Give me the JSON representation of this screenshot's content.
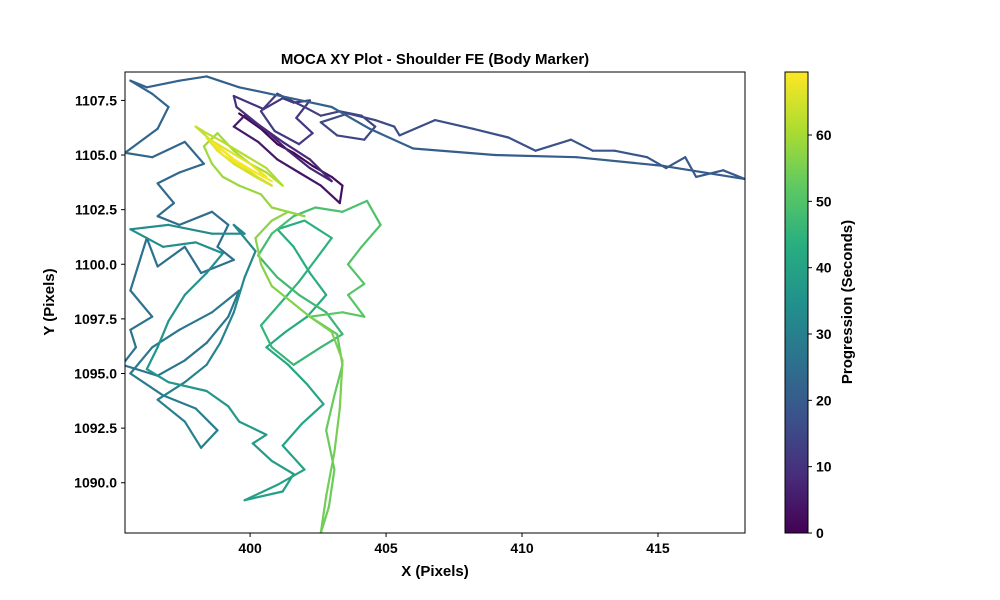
{
  "chart_data": {
    "type": "line",
    "title": "MOCA XY Plot - Shoulder FE (Body Marker)",
    "xlabel": "X (Pixels)",
    "ylabel": "Y (Pixels)",
    "colorbar_label": "Progression (Seconds)",
    "xlim": [
      395.4,
      418.2
    ],
    "ylim": [
      1087.7,
      1108.8
    ],
    "xticks": [
      400,
      405,
      410,
      415
    ],
    "yticks": [
      1090.0,
      1092.5,
      1095.0,
      1097.5,
      1100.0,
      1102.5,
      1105.0,
      1107.5
    ],
    "xtick_labels": [
      "400",
      "405",
      "410",
      "415"
    ],
    "ytick_labels": [
      "1090.0",
      "1092.5",
      "1095.0",
      "1097.5",
      "1100.0",
      "1102.5",
      "1105.0",
      "1107.5"
    ],
    "colorbar_range": [
      0,
      69.5
    ],
    "colorbar_ticks": [
      0,
      10,
      20,
      30,
      40,
      50,
      60
    ],
    "colorbar_tick_labels": [
      "0",
      "10",
      "20",
      "30",
      "40",
      "50",
      "60"
    ],
    "colormap": "viridis",
    "series": [
      {
        "values": [
          [
            399.6,
            1106.9
          ],
          [
            400.4,
            1106.2
          ],
          [
            401.0,
            1105.5
          ],
          [
            401.6,
            1105.1
          ],
          [
            402.3,
            1104.5
          ],
          [
            403.0,
            1104.0
          ],
          [
            403.4,
            1103.6
          ],
          [
            403.3,
            1102.8
          ],
          [
            402.6,
            1103.6
          ],
          [
            401.8,
            1104.2
          ],
          [
            401.0,
            1104.8
          ],
          [
            400.3,
            1105.6
          ],
          [
            399.4,
            1106.3
          ],
          [
            399.8,
            1106.8
          ],
          [
            400.7,
            1106.0
          ],
          [
            401.4,
            1105.2
          ],
          [
            402.2,
            1104.4
          ],
          [
            403.0,
            1103.8
          ],
          [
            402.2,
            1104.8
          ],
          [
            401.2,
            1105.6
          ],
          [
            400.3,
            1106.4
          ],
          [
            399.5,
            1107.2
          ],
          [
            399.4,
            1107.7
          ],
          [
            400.5,
            1107.1
          ]
        ],
        "t0": 0,
        "t1": 10
      },
      {
        "values": [
          [
            400.5,
            1107.1
          ],
          [
            401.2,
            1107.6
          ],
          [
            401.6,
            1107.4
          ],
          [
            402.2,
            1107.5
          ],
          [
            401.7,
            1106.7
          ],
          [
            402.3,
            1106.0
          ],
          [
            401.8,
            1105.5
          ],
          [
            400.9,
            1106.1
          ],
          [
            400.4,
            1107.0
          ],
          [
            401.0,
            1107.8
          ],
          [
            402.0,
            1107.2
          ],
          [
            402.6,
            1106.8
          ],
          [
            403.3,
            1107.0
          ],
          [
            404.1,
            1106.8
          ],
          [
            404.6,
            1106.3
          ],
          [
            404.2,
            1105.7
          ],
          [
            403.2,
            1105.9
          ],
          [
            402.6,
            1106.5
          ],
          [
            403.6,
            1106.9
          ],
          [
            404.6,
            1106.6
          ],
          [
            405.3,
            1106.3
          ],
          [
            405.5,
            1105.9
          ],
          [
            406.8,
            1106.6
          ],
          [
            408.2,
            1106.2
          ],
          [
            409.5,
            1105.8
          ],
          [
            410.5,
            1105.2
          ],
          [
            411.8,
            1105.7
          ],
          [
            412.6,
            1105.2
          ],
          [
            413.4,
            1105.2
          ],
          [
            414.6,
            1104.9
          ],
          [
            415.3,
            1104.4
          ],
          [
            416.0,
            1104.9
          ],
          [
            416.4,
            1104.0
          ],
          [
            417.4,
            1104.3
          ],
          [
            418.2,
            1103.9
          ]
        ],
        "t0": 10,
        "t1": 20
      },
      {
        "values": [
          [
            418.2,
            1103.9
          ],
          [
            415.2,
            1104.5
          ],
          [
            412.0,
            1104.9
          ],
          [
            409.0,
            1105.0
          ],
          [
            406.0,
            1105.3
          ],
          [
            404.4,
            1106.2
          ],
          [
            403.0,
            1107.2
          ],
          [
            401.5,
            1107.6
          ],
          [
            399.6,
            1108.1
          ],
          [
            398.4,
            1108.6
          ],
          [
            397.4,
            1108.4
          ],
          [
            396.2,
            1108.1
          ],
          [
            395.6,
            1108.4
          ],
          [
            396.4,
            1107.8
          ],
          [
            397.0,
            1107.2
          ],
          [
            396.6,
            1106.2
          ],
          [
            395.4,
            1105.1
          ],
          [
            396.4,
            1104.9
          ],
          [
            397.6,
            1105.6
          ],
          [
            398.3,
            1104.6
          ],
          [
            397.4,
            1104.2
          ],
          [
            396.6,
            1103.7
          ],
          [
            397.2,
            1102.8
          ],
          [
            396.6,
            1102.2
          ],
          [
            397.4,
            1101.8
          ],
          [
            398.6,
            1102.4
          ],
          [
            399.2,
            1101.8
          ],
          [
            398.8,
            1100.8
          ],
          [
            399.4,
            1100.2
          ],
          [
            398.2,
            1099.6
          ],
          [
            397.6,
            1100.8
          ],
          [
            396.6,
            1099.9
          ],
          [
            396.2,
            1101.2
          ],
          [
            395.6,
            1098.8
          ],
          [
            396.4,
            1097.6
          ],
          [
            395.6,
            1097.0
          ],
          [
            395.8,
            1096.2
          ],
          [
            395.3,
            1095.4
          ],
          [
            396.6,
            1094.9
          ],
          [
            397.6,
            1095.6
          ],
          [
            398.4,
            1096.4
          ],
          [
            399.2,
            1097.6
          ],
          [
            399.6,
            1098.8
          ],
          [
            398.6,
            1097.8
          ],
          [
            397.4,
            1097.0
          ]
        ],
        "t0": 20,
        "t1": 28
      },
      {
        "values": [
          [
            397.4,
            1097.0
          ],
          [
            396.4,
            1096.2
          ],
          [
            395.6,
            1095.0
          ],
          [
            396.8,
            1094.0
          ],
          [
            398.0,
            1093.4
          ],
          [
            398.8,
            1092.4
          ],
          [
            398.2,
            1091.6
          ],
          [
            397.6,
            1092.8
          ],
          [
            396.6,
            1093.8
          ],
          [
            397.6,
            1094.6
          ],
          [
            398.4,
            1095.4
          ],
          [
            398.9,
            1096.4
          ],
          [
            399.4,
            1097.8
          ],
          [
            399.8,
            1099.4
          ],
          [
            400.2,
            1100.6
          ],
          [
            399.4,
            1101.8
          ],
          [
            399.8,
            1101.4
          ],
          [
            398.6,
            1101.4
          ],
          [
            397.0,
            1101.8
          ],
          [
            395.6,
            1101.6
          ],
          [
            396.8,
            1100.8
          ],
          [
            398.0,
            1101.0
          ],
          [
            399.0,
            1100.5
          ],
          [
            398.4,
            1099.6
          ],
          [
            397.6,
            1098.6
          ],
          [
            397.0,
            1097.4
          ],
          [
            396.6,
            1096.2
          ],
          [
            396.2,
            1095.2
          ]
        ],
        "t0": 28,
        "t1": 36
      },
      {
        "values": [
          [
            396.2,
            1095.2
          ],
          [
            397.0,
            1094.6
          ],
          [
            398.4,
            1094.2
          ],
          [
            399.2,
            1093.5
          ],
          [
            399.6,
            1092.8
          ],
          [
            400.6,
            1092.2
          ],
          [
            400.1,
            1091.8
          ],
          [
            400.8,
            1091.0
          ],
          [
            401.6,
            1090.4
          ],
          [
            401.2,
            1089.6
          ],
          [
            399.8,
            1089.2
          ],
          [
            401.0,
            1089.9
          ],
          [
            402.0,
            1090.6
          ],
          [
            401.2,
            1091.7
          ],
          [
            401.9,
            1092.7
          ],
          [
            402.7,
            1093.6
          ],
          [
            402.1,
            1094.5
          ],
          [
            401.4,
            1095.4
          ],
          [
            400.6,
            1096.2
          ],
          [
            401.3,
            1096.9
          ],
          [
            402.1,
            1097.6
          ],
          [
            402.8,
            1098.6
          ],
          [
            402.2,
            1099.6
          ],
          [
            401.6,
            1100.8
          ],
          [
            401.0,
            1101.6
          ],
          [
            402.0,
            1102.0
          ],
          [
            403.0,
            1101.2
          ],
          [
            402.4,
            1100.2
          ],
          [
            401.8,
            1099.2
          ],
          [
            401.1,
            1098.2
          ],
          [
            400.4,
            1097.2
          ],
          [
            400.8,
            1096.2
          ],
          [
            401.6,
            1095.4
          ]
        ],
        "t0": 36,
        "t1": 46
      },
      {
        "values": [
          [
            401.6,
            1095.4
          ],
          [
            402.6,
            1096.2
          ],
          [
            403.4,
            1096.8
          ],
          [
            402.8,
            1097.8
          ],
          [
            401.8,
            1098.6
          ],
          [
            401.0,
            1099.4
          ],
          [
            400.3,
            1100.4
          ],
          [
            400.8,
            1101.4
          ],
          [
            401.6,
            1102.2
          ],
          [
            402.4,
            1102.6
          ],
          [
            403.4,
            1102.4
          ],
          [
            404.3,
            1102.9
          ],
          [
            404.8,
            1101.8
          ],
          [
            404.1,
            1100.8
          ],
          [
            403.6,
            1100.0
          ],
          [
            404.2,
            1099.1
          ],
          [
            403.6,
            1098.6
          ],
          [
            404.2,
            1097.6
          ],
          [
            403.4,
            1097.8
          ],
          [
            402.2,
            1097.6
          ],
          [
            403.2,
            1096.8
          ],
          [
            403.4,
            1095.4
          ],
          [
            403.1,
            1094.0
          ],
          [
            402.8,
            1092.4
          ],
          [
            403.1,
            1090.6
          ],
          [
            402.9,
            1088.9
          ],
          [
            402.6,
            1087.7
          ]
        ],
        "t0": 46,
        "t1": 54
      },
      {
        "values": [
          [
            402.6,
            1087.7
          ],
          [
            402.8,
            1089.4
          ],
          [
            403.1,
            1091.4
          ],
          [
            403.3,
            1093.4
          ],
          [
            403.4,
            1095.6
          ],
          [
            403.0,
            1096.9
          ],
          [
            402.2,
            1097.6
          ],
          [
            401.6,
            1098.2
          ],
          [
            400.8,
            1099.0
          ],
          [
            400.4,
            1100.0
          ],
          [
            400.2,
            1101.2
          ],
          [
            400.8,
            1102.0
          ],
          [
            401.4,
            1102.4
          ],
          [
            402.0,
            1102.2
          ],
          [
            400.8,
            1102.6
          ],
          [
            400.4,
            1103.2
          ],
          [
            399.6,
            1103.6
          ],
          [
            399.0,
            1104.0
          ],
          [
            398.6,
            1104.6
          ],
          [
            398.3,
            1105.4
          ],
          [
            398.8,
            1106.0
          ],
          [
            399.4,
            1105.2
          ],
          [
            400.0,
            1104.6
          ],
          [
            400.6,
            1104.2
          ],
          [
            401.2,
            1103.6
          ]
        ],
        "t0": 54,
        "t1": 61
      },
      {
        "values": [
          [
            401.2,
            1103.6
          ],
          [
            400.6,
            1104.4
          ],
          [
            399.8,
            1105.0
          ],
          [
            399.0,
            1105.6
          ],
          [
            398.4,
            1106.0
          ],
          [
            398.0,
            1106.3
          ],
          [
            398.8,
            1105.4
          ],
          [
            399.4,
            1104.8
          ],
          [
            400.0,
            1104.2
          ],
          [
            400.8,
            1103.6
          ],
          [
            400.2,
            1104.0
          ],
          [
            399.4,
            1104.6
          ],
          [
            398.8,
            1105.2
          ],
          [
            398.4,
            1105.8
          ],
          [
            399.2,
            1105.2
          ],
          [
            400.0,
            1104.6
          ],
          [
            400.6,
            1104.0
          ],
          [
            399.8,
            1104.4
          ],
          [
            399.0,
            1105.0
          ],
          [
            398.6,
            1105.6
          ],
          [
            399.4,
            1104.8
          ],
          [
            400.2,
            1104.2
          ],
          [
            400.8,
            1103.8
          ]
        ],
        "t0": 61,
        "t1": 69.5
      }
    ]
  }
}
